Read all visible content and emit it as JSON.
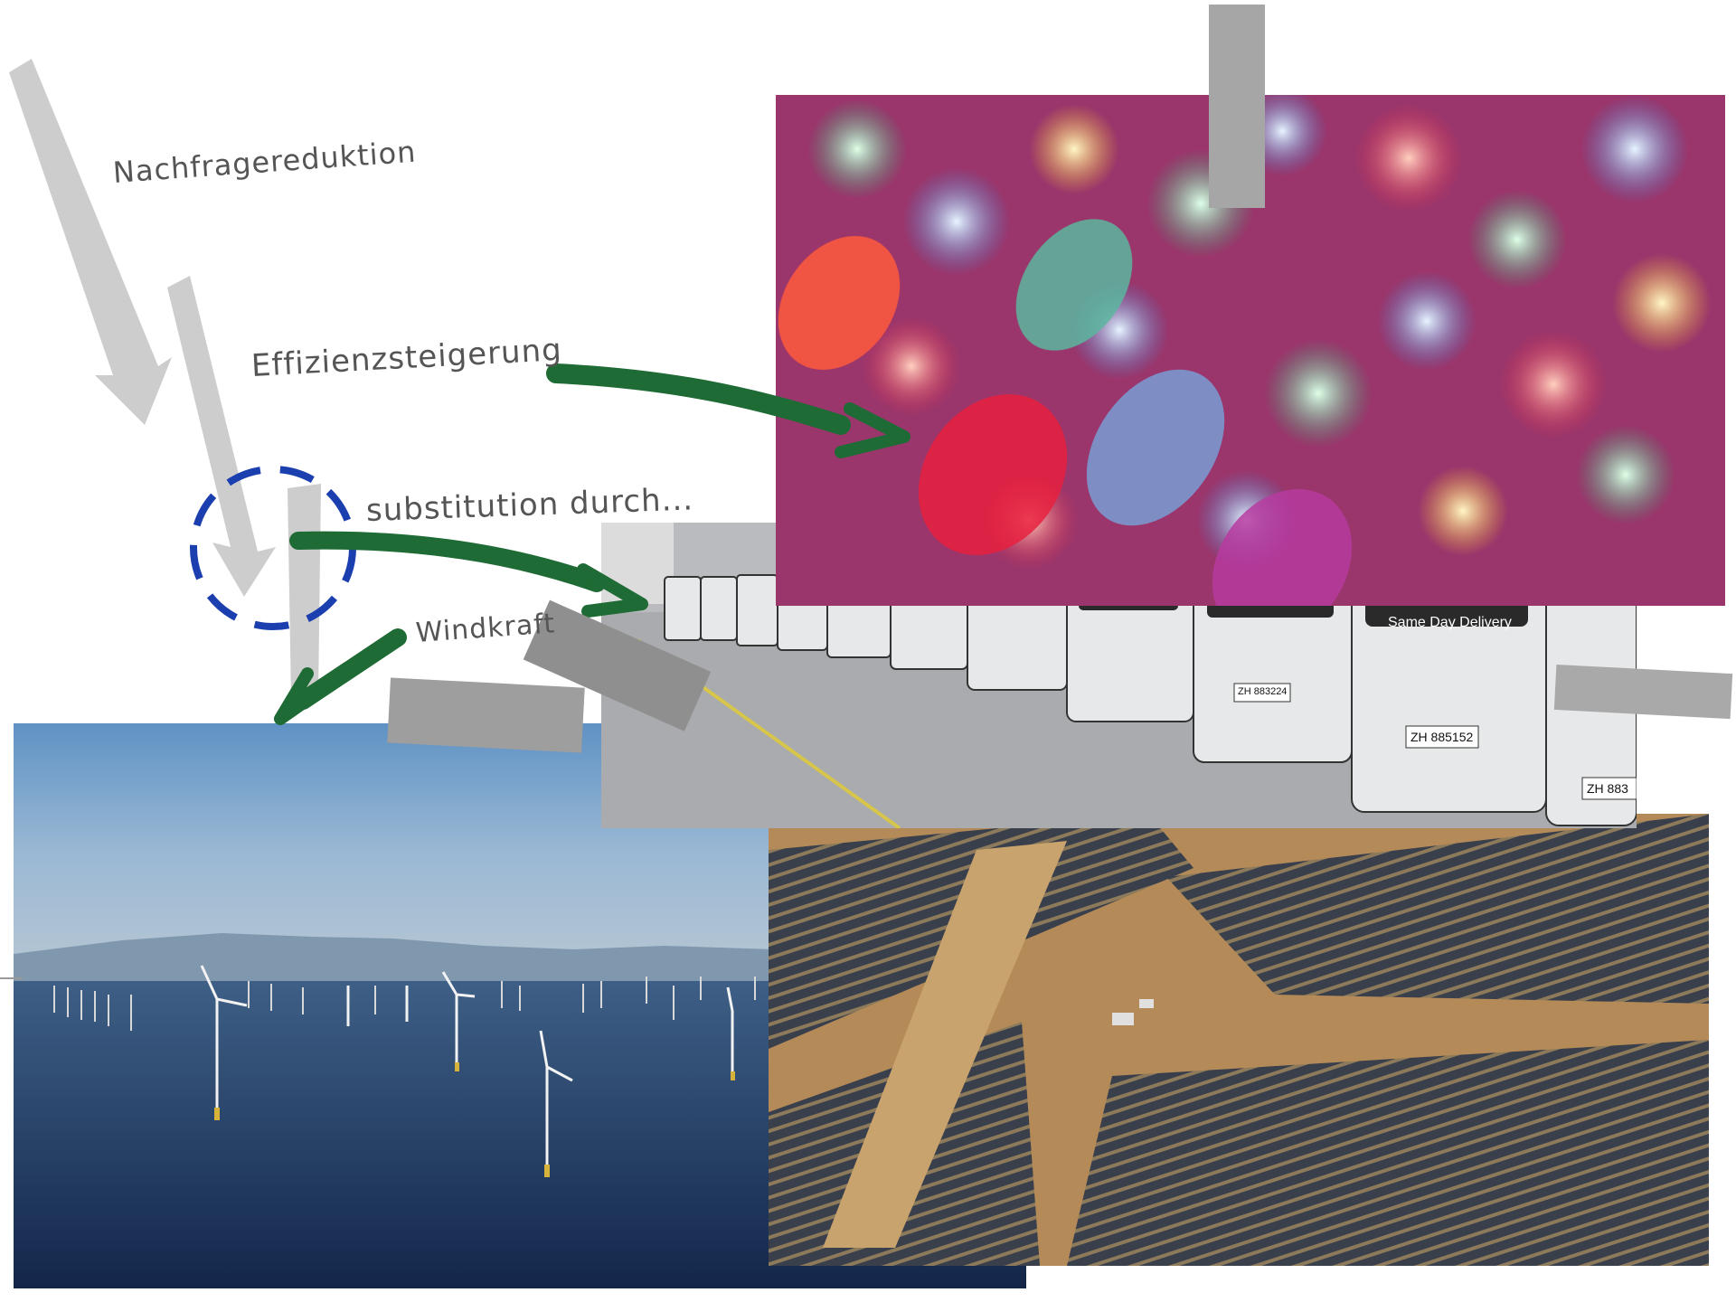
{
  "labels": {
    "nachfrage": "Nachfragereduktion",
    "effizienz": "Effizienzsteigerung",
    "substitution": "substitution durch...",
    "windkraft": "Windkraft"
  },
  "photos": {
    "leds": "led-lights-photo",
    "vans": "electric-vans-photo",
    "offshore": "offshore-windfarm-photo",
    "solar": "solar-farm-photo"
  },
  "van_text": {
    "slogan": "Same Day Delivery",
    "plate_1": "ZH 885152",
    "plate_2": "ZH 883",
    "plate_3": "ZH 883224"
  },
  "colors": {
    "arrow_green": "#1f6b35",
    "circle_blue": "#1c3fb0",
    "pencil_gray": "#c4c4c4"
  }
}
